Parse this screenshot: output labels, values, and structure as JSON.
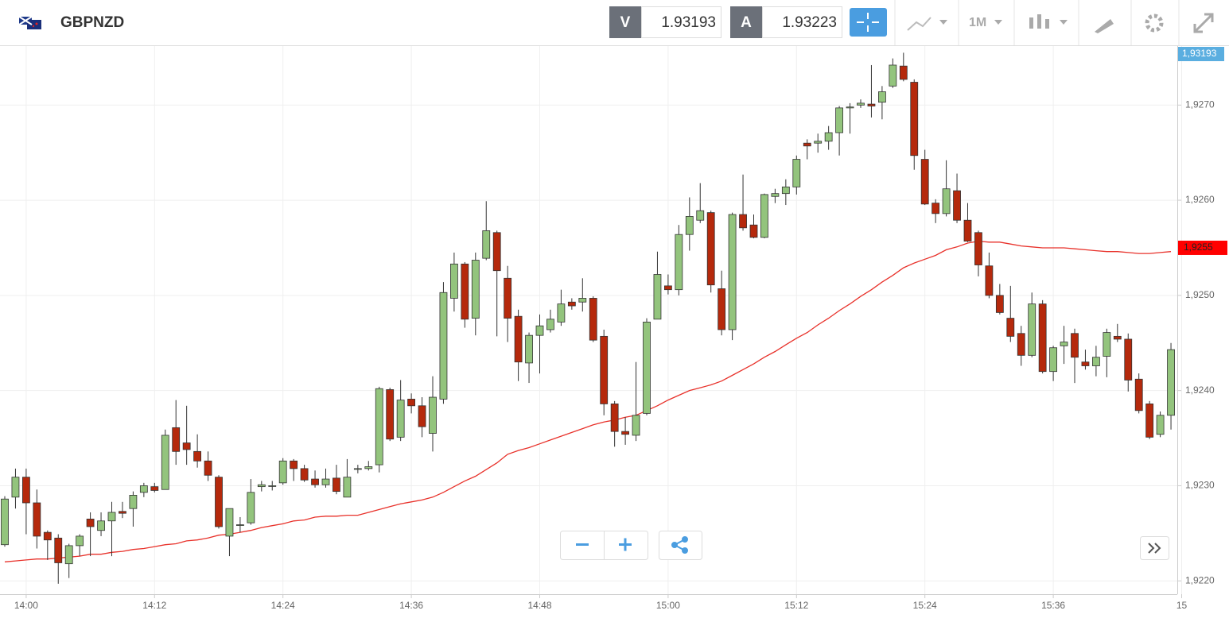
{
  "toolbar": {
    "symbol": "GBPNZD",
    "bid_label": "V",
    "bid": "1.93193",
    "ask_label": "A",
    "ask": "1.93223",
    "timeframe": "1M"
  },
  "chart_data": {
    "type": "candlestick",
    "categories": [
      null,
      null,
      "14:00",
      null,
      null,
      null,
      null,
      null,
      null,
      null,
      null,
      null,
      null,
      null,
      "14:12",
      null,
      null,
      null,
      null,
      null,
      null,
      null,
      null,
      null,
      null,
      null,
      "14:24",
      null,
      null,
      null,
      null,
      null,
      null,
      null,
      null,
      null,
      null,
      null,
      "14:36",
      null,
      null,
      null,
      null,
      null,
      null,
      null,
      null,
      null,
      null,
      null,
      "14:48",
      null,
      null,
      null,
      null,
      null,
      null,
      null,
      null,
      null,
      null,
      null,
      "15:00",
      null,
      null,
      null,
      null,
      null,
      null,
      null,
      null,
      null,
      null,
      null,
      "15:12",
      null,
      null,
      null,
      null,
      null,
      null,
      null,
      null,
      null,
      null,
      null,
      "15:24",
      null,
      null,
      null,
      null,
      null,
      null,
      null,
      null,
      null,
      null,
      null,
      "15:36",
      null,
      null,
      null,
      null,
      null,
      null,
      null,
      null,
      null,
      null,
      null,
      "15"
    ],
    "open": [
      1.92238,
      1.92288,
      1.92309,
      1.92282,
      1.92251,
      1.92245,
      1.92218,
      1.92237,
      1.92265,
      1.92253,
      1.92263,
      1.92273,
      1.92276,
      1.92293,
      1.92299,
      1.92296,
      1.92361,
      1.92345,
      1.92336,
      1.92326,
      1.92309,
      1.92247,
      1.92259,
      1.92261,
      1.92299,
      1.923,
      1.92303,
      1.92326,
      1.92318,
      1.92307,
      1.92301,
      1.92308,
      1.92288,
      1.92318,
      1.92318,
      1.92322,
      1.92401,
      1.92351,
      1.92391,
      1.92384,
      1.92355,
      1.92391,
      1.92497,
      1.92533,
      1.92476,
      1.92539,
      1.92566,
      1.92518,
      1.92478,
      1.92429,
      1.92458,
      1.92464,
      1.92472,
      1.92493,
      1.92493,
      1.92497,
      1.92457,
      1.92386,
      1.92357,
      1.92353,
      1.92376,
      1.92475,
      1.9251,
      1.92506,
      1.92564,
      1.92579,
      1.92587,
      1.92507,
      1.92464,
      1.92585,
      1.92574,
      1.92561,
      1.92604,
      1.92607,
      1.92614,
      1.9266,
      1.9266,
      1.92662,
      1.92671,
      1.92697,
      1.927,
      1.92701,
      1.92703,
      1.9272,
      1.92741,
      1.92724,
      1.92643,
      1.92597,
      1.92586,
      1.9261,
      1.92579,
      1.92566,
      1.92531,
      1.925,
      1.92476,
      1.9246,
      1.92437,
      1.92491,
      1.9242,
      1.92447,
      1.9246,
      1.9243,
      1.92426,
      1.92436,
      1.92457,
      1.92454,
      1.92412,
      1.92386,
      1.92354,
      1.92374,
      null
    ],
    "high": [
      1.92289,
      1.92318,
      1.92318,
      1.92296,
      1.92253,
      1.92249,
      1.92239,
      1.92249,
      1.92272,
      1.92272,
      1.92283,
      1.92283,
      1.92294,
      1.92303,
      1.92303,
      1.92359,
      1.9239,
      1.92384,
      1.92354,
      1.92336,
      1.92311,
      1.92276,
      1.92267,
      1.92307,
      1.92305,
      1.92305,
      1.92329,
      1.92328,
      1.92322,
      1.92316,
      1.92318,
      1.92322,
      1.92328,
      1.92322,
      1.92326,
      1.92404,
      1.92403,
      1.92411,
      1.92397,
      1.92393,
      1.92415,
      1.92514,
      1.92545,
      1.92535,
      1.92545,
      1.92599,
      1.92568,
      1.92531,
      1.92485,
      1.92461,
      1.9248,
      1.92485,
      1.92506,
      1.92497,
      1.92518,
      1.92499,
      1.92464,
      1.92389,
      1.92372,
      1.9243,
      1.92476,
      1.92546,
      1.92522,
      1.92574,
      1.92603,
      1.92618,
      1.92589,
      1.92526,
      1.92587,
      1.92627,
      1.92585,
      1.92607,
      1.92612,
      1.92622,
      1.92647,
      1.92664,
      1.9267,
      1.92678,
      1.92699,
      1.92702,
      1.92706,
      1.92742,
      1.9272,
      1.92749,
      1.92755,
      1.92727,
      1.92653,
      1.92601,
      1.92642,
      1.92628,
      1.92597,
      1.92568,
      1.92545,
      1.92512,
      1.9251,
      1.92468,
      1.92503,
      1.92495,
      1.92447,
      1.92468,
      1.92465,
      1.92443,
      1.92447,
      1.92465,
      1.9247,
      1.9246,
      1.92418,
      1.92389,
      1.92378,
      1.9245,
      null
    ],
    "low": [
      1.92236,
      1.92276,
      1.92249,
      1.92234,
      1.92222,
      1.92197,
      1.92203,
      1.92226,
      1.92226,
      1.92247,
      1.92226,
      1.92266,
      1.92257,
      1.92288,
      1.92293,
      1.92296,
      1.92322,
      1.92322,
      1.92319,
      1.92305,
      1.92255,
      1.92226,
      1.92251,
      1.92259,
      1.92294,
      1.92295,
      1.92301,
      1.92305,
      1.92304,
      1.92298,
      1.92298,
      1.92291,
      1.92288,
      1.92313,
      1.92316,
      1.92314,
      1.92347,
      1.92347,
      1.92376,
      1.92351,
      1.92336,
      1.92386,
      1.92483,
      1.92466,
      1.92458,
      1.92537,
      1.92457,
      1.92451,
      1.9241,
      1.92408,
      1.92418,
      1.92461,
      1.92468,
      1.92485,
      1.92483,
      1.92451,
      1.92374,
      1.92341,
      1.92343,
      1.92347,
      1.92374,
      1.92475,
      1.92501,
      1.925,
      1.92547,
      1.92576,
      1.92503,
      1.92458,
      1.92453,
      1.92568,
      1.9256,
      1.9256,
      1.92597,
      1.92595,
      1.92606,
      1.92643,
      1.9265,
      1.92653,
      1.92647,
      1.9267,
      1.92697,
      1.92687,
      1.92685,
      1.92718,
      1.92725,
      1.92632,
      1.92595,
      1.92576,
      1.92583,
      1.92576,
      1.92556,
      1.9252,
      1.92497,
      1.9248,
      1.92451,
      1.92426,
      1.92435,
      1.92418,
      1.9241,
      1.92428,
      1.92408,
      1.92422,
      1.92415,
      1.92414,
      1.92451,
      1.92399,
      1.92376,
      1.92349,
      1.92351,
      1.92359,
      null
    ],
    "close": [
      1.92286,
      1.92309,
      1.92282,
      1.92247,
      1.92243,
      1.92219,
      1.92237,
      1.92247,
      1.92257,
      1.92263,
      1.92272,
      1.92271,
      1.9229,
      1.923,
      1.92295,
      1.92353,
      1.92336,
      1.92338,
      1.92326,
      1.92311,
      1.92257,
      1.92276,
      1.92259,
      1.92293,
      1.92301,
      1.923,
      1.92326,
      1.92318,
      1.92306,
      1.92301,
      1.92307,
      1.92294,
      1.92309,
      1.92318,
      1.9232,
      1.92402,
      1.92349,
      1.9239,
      1.92384,
      1.92362,
      1.92393,
      1.92503,
      1.92533,
      1.92475,
      1.92537,
      1.92568,
      1.92526,
      1.92476,
      1.9243,
      1.92458,
      1.92468,
      1.92475,
      1.92491,
      1.92489,
      1.92497,
      1.92453,
      1.92386,
      1.92357,
      1.92354,
      1.92374,
      1.92472,
      1.92522,
      1.92506,
      1.92564,
      1.92583,
      1.92589,
      1.92511,
      1.92464,
      1.92585,
      1.92571,
      1.92561,
      1.92606,
      1.92607,
      1.92614,
      1.92643,
      1.92657,
      1.92662,
      1.92671,
      1.92697,
      1.92698,
      1.92702,
      1.92699,
      1.92714,
      1.92742,
      1.92727,
      1.92647,
      1.92596,
      1.92586,
      1.92612,
      1.92579,
      1.92557,
      1.92532,
      1.925,
      1.92482,
      1.92457,
      1.92437,
      1.92491,
      1.9242,
      1.92445,
      1.92451,
      1.92435,
      1.92426,
      1.92435,
      1.92461,
      1.92454,
      1.92411,
      1.92379,
      1.92351,
      1.92374,
      1.92443,
      null
    ],
    "up_color": "#93c47d",
    "down_color": "#b5290c",
    "ma": {
      "color": "#e8312a",
      "values": [
        1.9222,
        1.92221,
        1.92222,
        1.92223,
        1.92223,
        1.92224,
        1.92225,
        1.92226,
        1.92228,
        1.92228,
        1.9223,
        1.92231,
        1.92233,
        1.92234,
        1.92236,
        1.92238,
        1.92239,
        1.92242,
        1.92243,
        1.92245,
        1.92248,
        1.92249,
        1.92251,
        1.92253,
        1.92256,
        1.92258,
        1.9226,
        1.92263,
        1.92264,
        1.92267,
        1.92268,
        1.92268,
        1.92269,
        1.92269,
        1.92272,
        1.92275,
        1.92278,
        1.92281,
        1.92283,
        1.92285,
        1.92288,
        1.92293,
        1.92299,
        1.92305,
        1.9231,
        1.92317,
        1.92324,
        1.92333,
        1.92337,
        1.9234,
        1.92344,
        1.92348,
        1.92352,
        1.92356,
        1.9236,
        1.92364,
        1.92367,
        1.92369,
        1.92372,
        1.92374,
        1.92379,
        1.92384,
        1.9239,
        1.92395,
        1.924,
        1.92403,
        1.92406,
        1.9241,
        1.92416,
        1.92422,
        1.92428,
        1.92435,
        1.92441,
        1.92448,
        1.92455,
        1.92461,
        1.92469,
        1.92476,
        1.92484,
        1.92491,
        1.92499,
        1.92506,
        1.92514,
        1.92521,
        1.92529,
        1.92534,
        1.92538,
        1.92542,
        1.92548,
        1.92551,
        1.92555,
        1.92557,
        1.92556,
        1.92556,
        1.92554,
        1.92552,
        1.92551,
        1.9255,
        1.9255,
        1.9255,
        1.92549,
        1.92548,
        1.92547,
        1.92546,
        1.92546,
        1.92545,
        1.92544,
        1.92544,
        1.92545,
        1.92546,
        null
      ],
      "label": {
        "value": 1.9255,
        "label": "1,9255"
      }
    },
    "price_label": {
      "value": 1.93193,
      "label": "1,93193"
    },
    "ylim": [
      1.92186,
      1.92762
    ],
    "yticks": [
      {
        "value": 1.922,
        "label": "1,9220"
      },
      {
        "value": 1.923,
        "label": "1,9230"
      },
      {
        "value": 1.924,
        "label": "1,9240"
      },
      {
        "value": 1.925,
        "label": "1,9250"
      },
      {
        "value": 1.926,
        "label": "1,9260"
      },
      {
        "value": 1.927,
        "label": "1,9270"
      }
    ],
    "grid": true
  }
}
